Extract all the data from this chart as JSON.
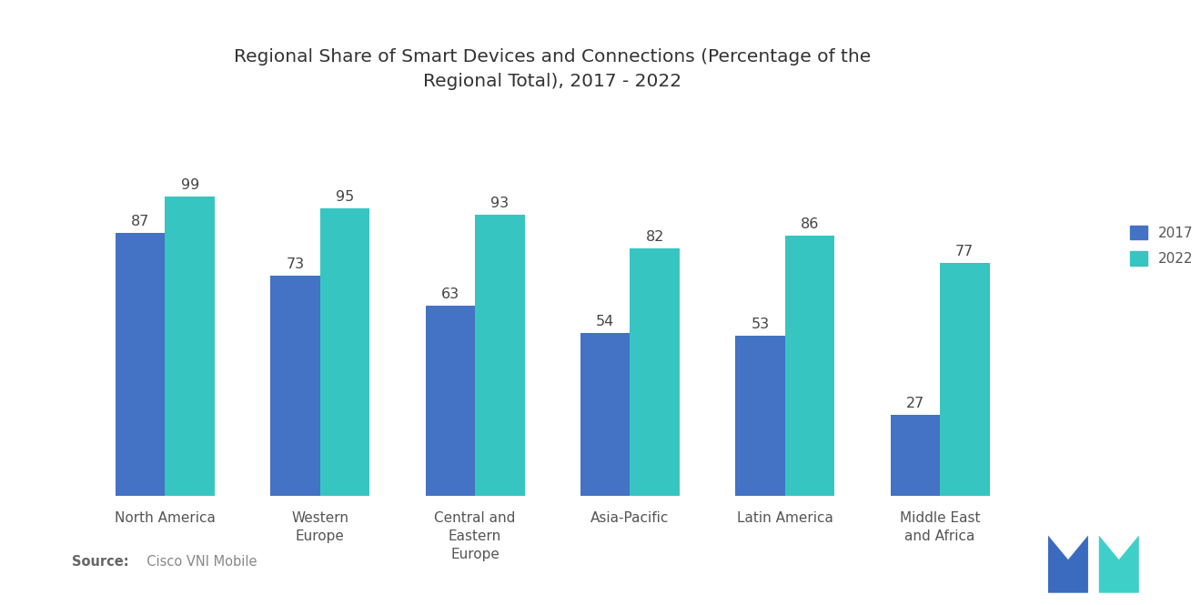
{
  "title": "Regional Share of Smart Devices and Connections (Percentage of the\nRegional Total), 2017 - 2022",
  "categories": [
    "North America",
    "Western\nEurope",
    "Central and\nEastern\nEurope",
    "Asia-Pacific",
    "Latin America",
    "Middle East\nand Africa"
  ],
  "values_2017": [
    87,
    73,
    63,
    54,
    53,
    27
  ],
  "values_2022": [
    99,
    95,
    93,
    82,
    86,
    77
  ],
  "color_2017": "#4472c4",
  "color_2022": "#36c5c1",
  "legend_labels": [
    "2017",
    "2022"
  ],
  "source_bold": "Source:",
  "source_text": "  Cisco VNI Mobile",
  "source_color": "#888888",
  "bar_width": 0.32,
  "ylim": [
    0,
    120
  ],
  "title_fontsize": 14.5,
  "label_fontsize": 11,
  "tick_fontsize": 11,
  "value_fontsize": 11.5,
  "background_color": "#ffffff",
  "logo_blue": "#3a6bbf",
  "logo_teal": "#3dcfc8"
}
